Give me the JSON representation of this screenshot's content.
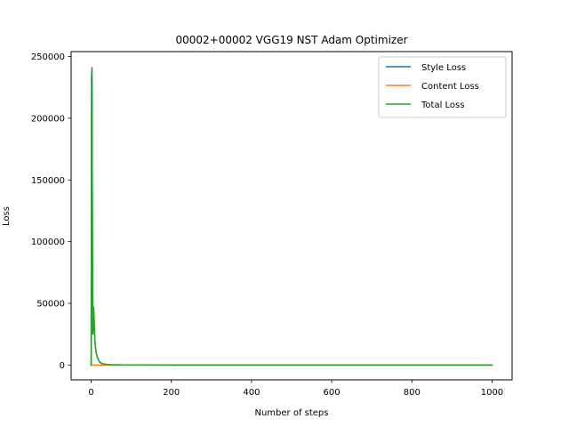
{
  "chart_data": {
    "type": "line",
    "title": "00002+00002 VGG19 NST Adam Optimizer",
    "xlabel": "Number of steps",
    "ylabel": "Loss",
    "xlim": [
      -50,
      1050
    ],
    "ylim": [
      -12000,
      254000
    ],
    "xticks": [
      0,
      200,
      400,
      600,
      800,
      1000
    ],
    "xtick_labels": [
      "0",
      "200",
      "400",
      "600",
      "800",
      "1000"
    ],
    "yticks": [
      0,
      50000,
      100000,
      150000,
      200000,
      250000
    ],
    "ytick_labels": [
      "0",
      "50000",
      "100000",
      "150000",
      "200000",
      "250000"
    ],
    "grid": false,
    "legend_position": "upper right",
    "series": [
      {
        "name": "Style Loss",
        "color": "#1f77b4",
        "x": [
          0,
          1,
          2,
          3,
          4,
          5,
          6,
          7,
          8,
          10,
          12,
          15,
          20,
          25,
          30,
          40,
          50,
          60,
          80,
          100,
          150,
          200,
          300,
          400,
          500,
          600,
          700,
          800,
          900,
          1000
        ],
        "y": [
          0,
          233000,
          240000,
          120000,
          25000,
          30000,
          47000,
          42000,
          30000,
          17000,
          11000,
          6500,
          3000,
          1500,
          900,
          450,
          250,
          150,
          80,
          50,
          30,
          20,
          12,
          8,
          6,
          5,
          4,
          3,
          3,
          3
        ]
      },
      {
        "name": "Content Loss",
        "color": "#ff7f0e",
        "x": [
          0,
          50,
          100,
          200,
          400,
          600,
          800,
          1000
        ],
        "y": [
          0,
          3,
          3,
          3,
          3,
          3,
          3,
          3
        ]
      },
      {
        "name": "Total Loss",
        "color": "#2ca02c",
        "x": [
          0,
          1,
          2,
          3,
          4,
          5,
          6,
          7,
          8,
          10,
          12,
          15,
          20,
          25,
          30,
          40,
          50,
          60,
          80,
          100,
          150,
          200,
          300,
          400,
          500,
          600,
          700,
          800,
          900,
          1000
        ],
        "y": [
          0,
          233000,
          241000,
          120000,
          25000,
          30000,
          47000,
          42000,
          30000,
          17000,
          11000,
          6500,
          3000,
          1500,
          900,
          450,
          250,
          150,
          80,
          50,
          30,
          20,
          12,
          8,
          6,
          5,
          4,
          3,
          3,
          3
        ]
      }
    ]
  }
}
